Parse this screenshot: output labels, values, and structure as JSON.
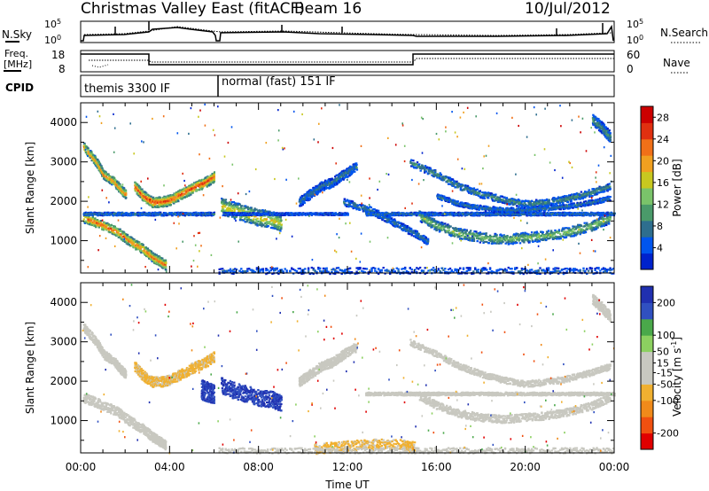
{
  "header": {
    "title": "Christmas Valley East (fitACF)",
    "beam": "Beam 16",
    "date": "10/Jul/2012"
  },
  "top_panels": {
    "nsky_label": "N.Sky",
    "nsearch_label": "N.Search",
    "nsky_ticks": [
      "10^5",
      "10^0"
    ],
    "nsearch_ticks": [
      "10^5",
      "10^0"
    ],
    "freq_label_1": "Freq.",
    "freq_label_2": "[MHz]",
    "freq_ticks": [
      "18",
      "8"
    ],
    "nave_label": "Nave",
    "nave_ticks": [
      "60",
      "0"
    ],
    "cpid_label": "CPID",
    "cpid_segments": [
      {
        "label": "themis 3300 IF",
        "start_hour": 0,
        "end_hour": 6.1
      },
      {
        "label": "normal (fast) 151 IF",
        "start_hour": 6.1,
        "end_hour": 24
      }
    ]
  },
  "chart_data": [
    {
      "type": "heatmap",
      "name": "power",
      "xlabel": "",
      "ylabel": "Slant Range [km]",
      "xlim": [
        0,
        24
      ],
      "ylim": [
        180,
        4500
      ],
      "y_ticks": [
        1000,
        2000,
        3000,
        4000
      ],
      "colorbar": {
        "label": "Power [dB]",
        "ticks": [
          4,
          8,
          12,
          16,
          20,
          24,
          28
        ],
        "range": [
          0,
          30
        ],
        "colors": [
          "#0022cc",
          "#0055ee",
          "#2e6e8e",
          "#4a9a6a",
          "#7ac36a",
          "#c8c820",
          "#f0a020",
          "#f07018",
          "#e03010",
          "#cc0000"
        ]
      },
      "bands": [
        {
          "x": [
            0.1,
            0.7,
            1.0,
            1.5,
            1.8,
            2.0
          ],
          "y": [
            3400,
            3000,
            2700,
            2500,
            2300,
            2200
          ],
          "w": 220,
          "power": 22
        },
        {
          "x": [
            2.4,
            2.8,
            3.2,
            3.6,
            4.0,
            4.5,
            5.0,
            5.6,
            6.0
          ],
          "y": [
            2400,
            2150,
            2000,
            2000,
            2050,
            2200,
            2350,
            2500,
            2650
          ],
          "w": 260,
          "power": 26
        },
        {
          "x": [
            0.1,
            0.8,
            1.6,
            2.2,
            2.8,
            3.2,
            3.5,
            3.8
          ],
          "y": [
            1600,
            1450,
            1250,
            1000,
            800,
            600,
            500,
            400
          ],
          "w": 240,
          "power": 24
        },
        {
          "x": [
            0.1,
            1.0,
            2.0,
            3.0,
            4.0,
            5.0,
            6.0
          ],
          "y": [
            1700,
            1700,
            1700,
            1700,
            1700,
            1700,
            1700
          ],
          "w": 80,
          "power": 8
        },
        {
          "x": [
            6.3,
            6.8,
            7.4,
            8.0,
            8.6,
            9.0
          ],
          "y": [
            1900,
            1800,
            1700,
            1600,
            1550,
            1450
          ],
          "w": 420,
          "power": 18
        },
        {
          "x": [
            6.4,
            7.2,
            8.0,
            9.0,
            10.0,
            11.0,
            12.0
          ],
          "y": [
            1700,
            1700,
            1700,
            1700,
            1700,
            1700,
            1700
          ],
          "w": 60,
          "power": 6
        },
        {
          "x": [
            9.8,
            10.3,
            10.8,
            11.3,
            11.8,
            12.4
          ],
          "y": [
            2000,
            2200,
            2400,
            2500,
            2700,
            2900
          ],
          "w": 240,
          "power": 8
        },
        {
          "x": [
            11.8,
            13.0,
            14.0,
            15.0,
            15.6
          ],
          "y": [
            2000,
            1800,
            1500,
            1200,
            1000
          ],
          "w": 180,
          "power": 8
        },
        {
          "x": [
            12.8,
            14.0,
            15.0,
            16.0,
            17.0,
            18.0,
            19.0,
            20.0,
            21.0,
            22.0,
            23.0,
            24.0
          ],
          "y": [
            1700,
            1700,
            1700,
            1700,
            1700,
            1700,
            1700,
            1700,
            1700,
            1700,
            1700,
            1700
          ],
          "w": 80,
          "power": 8
        },
        {
          "x": [
            15.2,
            16.0,
            17.0,
            18.0,
            19.0,
            20.0,
            21.0,
            22.0,
            23.0,
            23.8
          ],
          "y": [
            1650,
            1400,
            1200,
            1100,
            1050,
            1100,
            1150,
            1250,
            1400,
            1600
          ],
          "w": 260,
          "power": 14
        },
        {
          "x": [
            14.8,
            16.0,
            17.0,
            18.0,
            19.0,
            20.0,
            21.0,
            22.0,
            23.0,
            23.8
          ],
          "y": [
            3000,
            2700,
            2400,
            2200,
            2050,
            1950,
            2000,
            2100,
            2250,
            2400
          ],
          "w": 180,
          "power": 10
        },
        {
          "x": [
            16.0,
            17.0,
            18.0,
            19.0,
            20.0,
            21.0,
            22.0,
            23.0,
            23.8
          ],
          "y": [
            2150,
            1950,
            1850,
            1800,
            1800,
            1850,
            1900,
            2000,
            2100
          ],
          "w": 120,
          "power": 8
        },
        {
          "x": [
            23.0,
            23.4,
            23.8
          ],
          "y": [
            4100,
            3900,
            3650
          ],
          "w": 280,
          "power": 10
        },
        {
          "x": [
            6.2,
            9.0,
            12.0,
            15.0,
            18.0,
            21.0,
            24.0
          ],
          "y": [
            260,
            260,
            260,
            260,
            260,
            260,
            260
          ],
          "w": 160,
          "power": 6
        }
      ]
    },
    {
      "type": "heatmap",
      "name": "velocity",
      "xlabel": "Time UT",
      "ylabel": "Slant Range [km]",
      "xlim": [
        0,
        24
      ],
      "ylim": [
        180,
        4500
      ],
      "x_ticks": [
        "00:00",
        "04:00",
        "08:00",
        "12:00",
        "16:00",
        "20:00",
        "00:00"
      ],
      "y_ticks": [
        1000,
        2000,
        3000,
        4000
      ],
      "colorbar": {
        "label": "Velocity [m s^-1]",
        "ticks": [
          200,
          100,
          50,
          15,
          -15,
          -50,
          -100,
          -200
        ],
        "range": [
          -250,
          250
        ],
        "colors": [
          "#e00000",
          "#f05010",
          "#f08a1a",
          "#f0b030",
          "#c8c8c0",
          "#c8c8c0",
          "#8cd060",
          "#4aa84a",
          "#3050c0",
          "#2030b0"
        ]
      },
      "bands": [
        {
          "x": [
            0.1,
            0.7,
            1.0,
            1.5,
            1.8,
            2.0
          ],
          "y": [
            3400,
            3000,
            2700,
            2500,
            2300,
            2200
          ],
          "w": 220,
          "velocity": 0
        },
        {
          "x": [
            2.4,
            2.8,
            3.2,
            3.6,
            4.0,
            4.5,
            5.0,
            5.6,
            6.0
          ],
          "y": [
            2400,
            2150,
            2000,
            2000,
            2050,
            2200,
            2350,
            2500,
            2650
          ],
          "w": 260,
          "velocity": -60
        },
        {
          "x": [
            0.1,
            0.8,
            1.6,
            2.2,
            2.8,
            3.2,
            3.5,
            3.8
          ],
          "y": [
            1600,
            1450,
            1250,
            1000,
            800,
            600,
            500,
            400
          ],
          "w": 240,
          "velocity": 0
        },
        {
          "x": [
            5.4,
            5.7,
            6.0
          ],
          "y": [
            1800,
            1750,
            1700
          ],
          "w": 500,
          "velocity": 200
        },
        {
          "x": [
            6.3,
            6.8,
            7.4,
            8.0,
            8.6,
            9.0
          ],
          "y": [
            1900,
            1800,
            1700,
            1600,
            1550,
            1450
          ],
          "w": 420,
          "velocity": 200
        },
        {
          "x": [
            9.8,
            10.3,
            10.8,
            11.3,
            11.8,
            12.4
          ],
          "y": [
            2000,
            2200,
            2400,
            2500,
            2700,
            2900
          ],
          "w": 240,
          "velocity": 0
        },
        {
          "x": [
            12.8,
            14.0,
            15.0,
            16.0,
            17.0,
            18.0,
            19.0,
            20.0,
            21.0,
            22.0,
            23.0,
            24.0
          ],
          "y": [
            1700,
            1700,
            1700,
            1700,
            1700,
            1700,
            1700,
            1700,
            1700,
            1700,
            1700,
            1700
          ],
          "w": 80,
          "velocity": 0
        },
        {
          "x": [
            15.2,
            16.0,
            17.0,
            18.0,
            19.0,
            20.0,
            21.0,
            22.0,
            23.0,
            23.8
          ],
          "y": [
            1650,
            1400,
            1200,
            1100,
            1050,
            1100,
            1150,
            1250,
            1400,
            1600
          ],
          "w": 200,
          "velocity": 0
        },
        {
          "x": [
            14.8,
            16.0,
            17.0,
            18.0,
            19.0,
            20.0,
            21.0,
            22.0,
            23.0,
            23.8
          ],
          "y": [
            3000,
            2700,
            2400,
            2200,
            2050,
            1950,
            2000,
            2100,
            2250,
            2400
          ],
          "w": 160,
          "velocity": 0
        },
        {
          "x": [
            23.0,
            23.4,
            23.8
          ],
          "y": [
            4100,
            3900,
            3650
          ],
          "w": 260,
          "velocity": 0
        },
        {
          "x": [
            10.5,
            11.5,
            12.5,
            13.5,
            14.5,
            15.0
          ],
          "y": [
            300,
            350,
            400,
            420,
            400,
            350
          ],
          "w": 260,
          "velocity": -60
        },
        {
          "x": [
            6.2,
            9.0,
            12.0,
            15.0,
            18.0,
            21.0,
            24.0
          ],
          "y": [
            260,
            260,
            260,
            260,
            260,
            260,
            260
          ],
          "w": 140,
          "velocity": -30
        }
      ]
    }
  ]
}
